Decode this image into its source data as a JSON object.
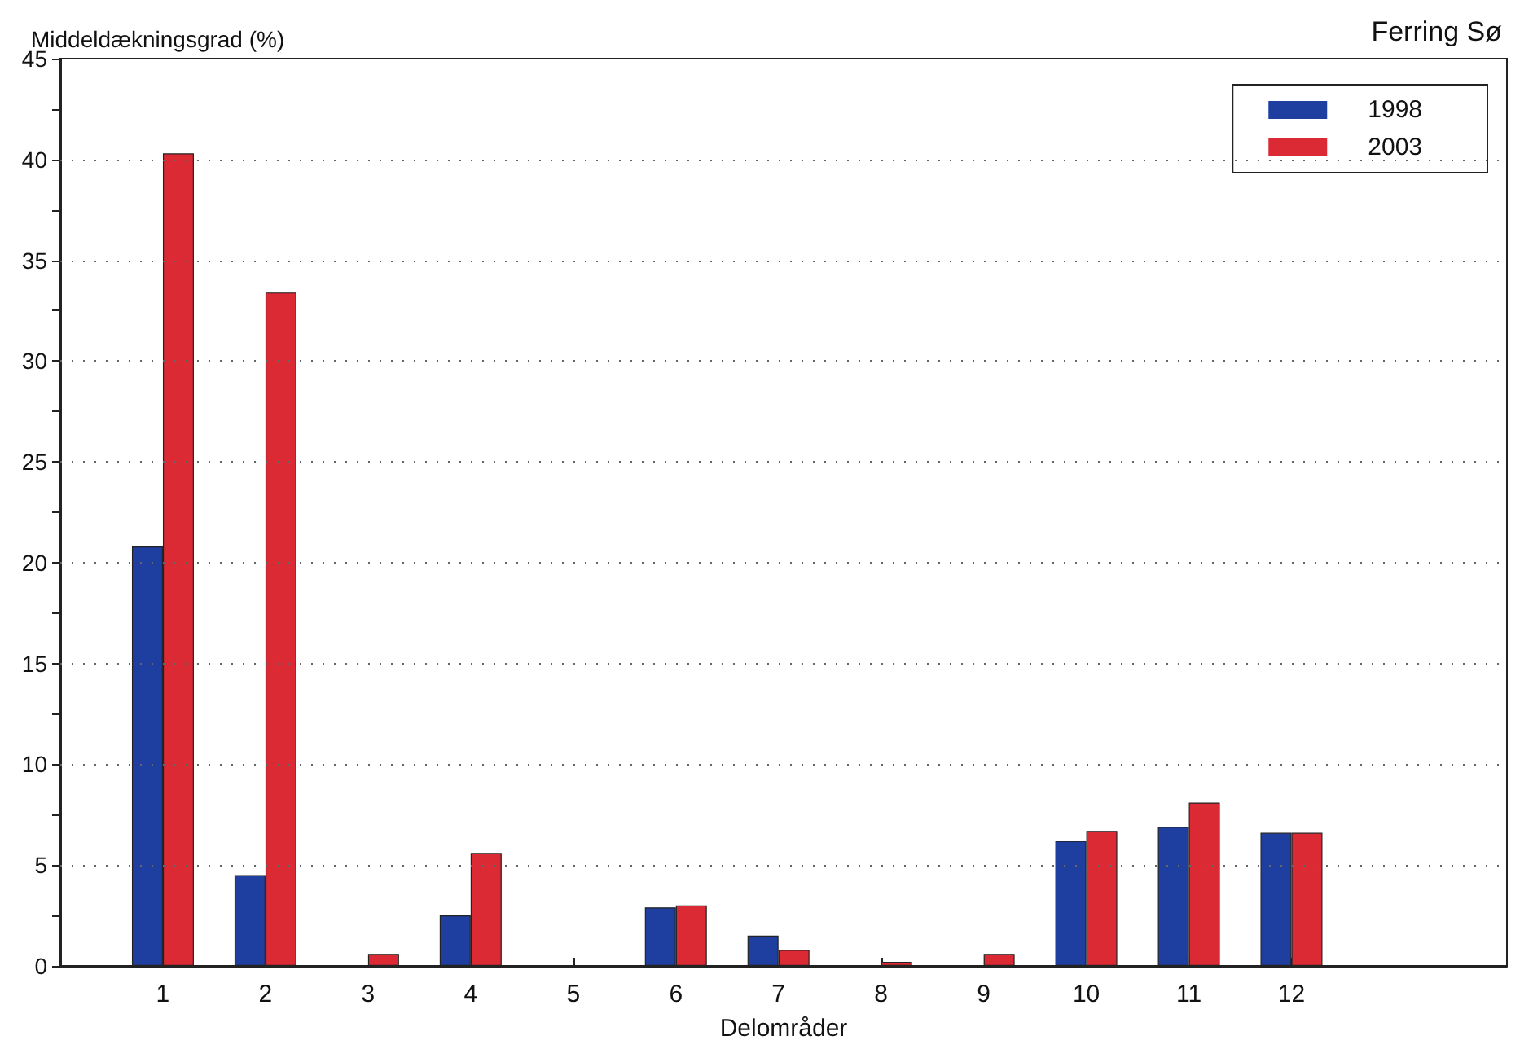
{
  "chart_data": {
    "type": "bar",
    "title": "Ferring Sø",
    "xlabel": "Delområder",
    "ylabel": "Middeldækningsgrad (%)",
    "x": [
      1,
      2,
      3,
      4,
      5,
      6,
      7,
      8,
      9,
      10,
      11,
      12
    ],
    "series": [
      {
        "name": "1998",
        "color": "#1f3fa0",
        "values": [
          20.8,
          4.5,
          0,
          2.5,
          0,
          2.9,
          1.5,
          0,
          0,
          6.2,
          6.9,
          6.6
        ]
      },
      {
        "name": "2003",
        "color": "#dc2a35",
        "values": [
          40.3,
          33.4,
          0.6,
          5.6,
          0,
          3.0,
          0.8,
          0.2,
          0.6,
          6.7,
          8.1,
          6.6
        ]
      }
    ],
    "xlim": [
      0,
      14.1
    ],
    "xticks": [
      1,
      2,
      3,
      4,
      5,
      6,
      7,
      8,
      9,
      10,
      11,
      12
    ],
    "ylim": [
      0,
      45
    ],
    "yticks": [
      0,
      {
        "value": 2.5,
        "label": null
      },
      5,
      {
        "value": 7.5,
        "label": null
      },
      10,
      {
        "value": 12.5,
        "label": null
      },
      15,
      {
        "value": 17.5,
        "label": null
      },
      20,
      {
        "value": 22.5,
        "label": null
      },
      25,
      {
        "value": 27.5,
        "label": null
      },
      30,
      {
        "value": 32.5,
        "label": null
      },
      35,
      {
        "value": 37.5,
        "label": null
      },
      40,
      {
        "value": 42.5,
        "label": null
      },
      45
    ],
    "grid": "y",
    "legend": "top right"
  }
}
